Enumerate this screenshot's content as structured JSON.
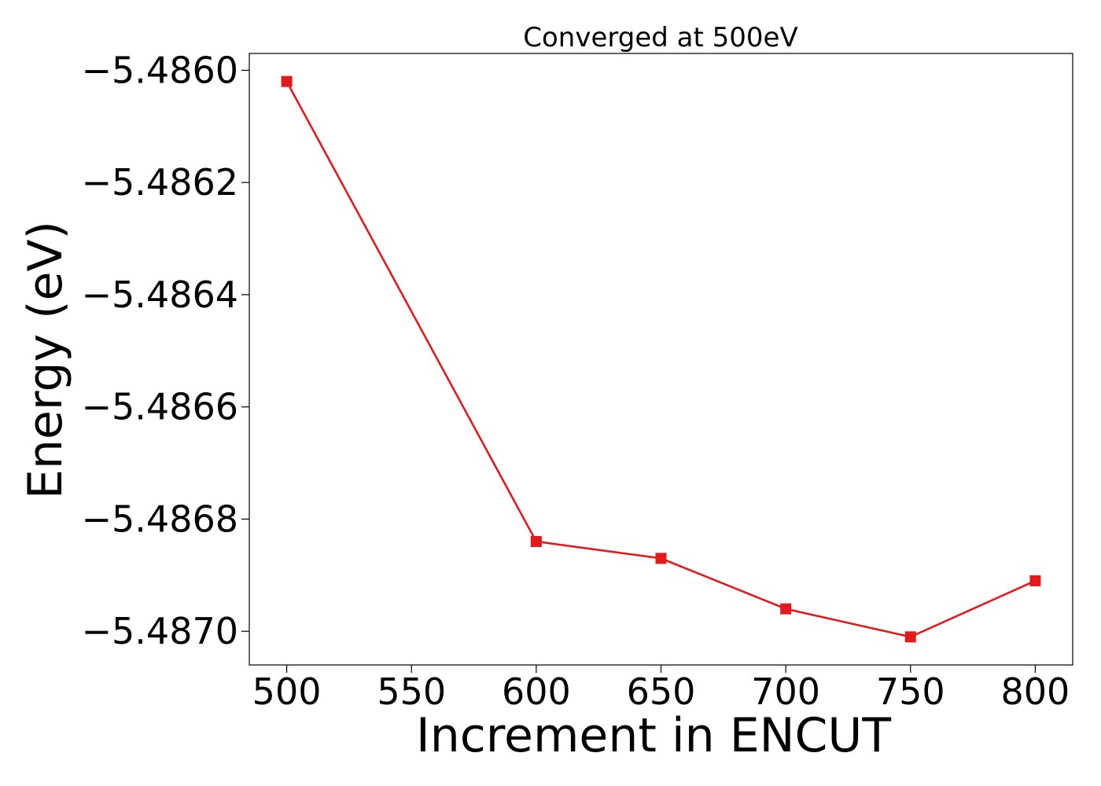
{
  "chart_data": {
    "type": "line",
    "title": "Converged at 500eV",
    "xlabel": "Increment in ENCUT",
    "ylabel": "Energy (eV)",
    "xlim": [
      485,
      815
    ],
    "ylim": [
      -5.48706,
      -5.48597
    ],
    "x_ticks": [
      500,
      550,
      600,
      650,
      700,
      750,
      800
    ],
    "x_tick_labels": [
      "500",
      "550",
      "600",
      "650",
      "700",
      "750",
      "800"
    ],
    "y_ticks": [
      -5.487,
      -5.4868,
      -5.4866,
      -5.4864,
      -5.4862,
      -5.486
    ],
    "y_tick_labels": [
      "−5.4870",
      "−5.4868",
      "−5.4866",
      "−5.4864",
      "−5.4862",
      "−5.4860"
    ],
    "grid": false,
    "legend": "none",
    "series": [
      {
        "color": "#e31a1c",
        "marker": "square",
        "x": [
          500,
          600,
          650,
          700,
          750,
          800
        ],
        "y": [
          -5.48602,
          -5.48684,
          -5.48687,
          -5.48696,
          -5.48701,
          -5.48691
        ]
      }
    ]
  }
}
